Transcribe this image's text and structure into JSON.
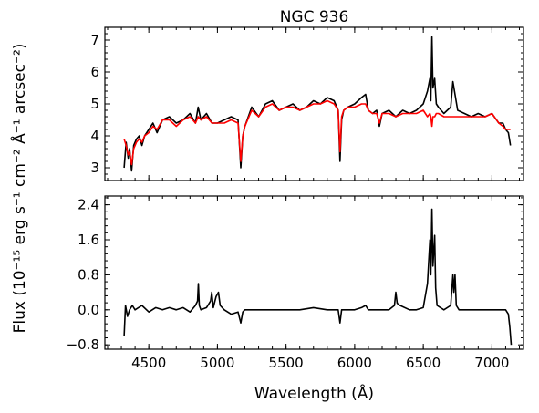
{
  "chart_data": {
    "title": "NGC 936",
    "xlabel": "Wavelength (Å)",
    "ylabel": "Flux (10⁻¹⁵ erg s⁻¹ cm⁻² Å⁻¹ arcsec⁻²)",
    "xlim": [
      4180,
      7230
    ],
    "xticks": [
      "4500",
      "5000",
      "5500",
      "6000",
      "6500",
      "7000"
    ],
    "x_tick_values": [
      4500,
      5000,
      5500,
      6000,
      6500,
      7000
    ],
    "panels": [
      {
        "type": "line",
        "ylim": [
          2.6,
          7.4
        ],
        "yticks": [
          "3",
          "4",
          "5",
          "6",
          "7"
        ],
        "y_tick_values": [
          3,
          4,
          5,
          6,
          7
        ],
        "series": [
          {
            "color": "#000000",
            "role": "observed",
            "x": [
              4320,
              4335,
              4350,
              4360,
              4375,
              4390,
              4410,
              4430,
              4450,
              4470,
              4500,
              4530,
              4560,
              4600,
              4650,
              4700,
              4750,
              4800,
              4840,
              4860,
              4880,
              4920,
              4960,
              5000,
              5050,
              5100,
              5150,
              5170,
              5185,
              5200,
              5250,
              5300,
              5350,
              5400,
              5450,
              5500,
              5550,
              5600,
              5650,
              5700,
              5750,
              5800,
              5850,
              5880,
              5893,
              5905,
              5920,
              5950,
              6000,
              6050,
              6080,
              6100,
              6130,
              6160,
              6180,
              6200,
              6250,
              6300,
              6350,
              6400,
              6450,
              6500,
              6530,
              6548,
              6555,
              6563,
              6570,
              6583,
              6595,
              6610,
              6650,
              6700,
              6716,
              6731,
              6750,
              6800,
              6850,
              6900,
              6950,
              7000,
              7050,
              7080,
              7100,
              7120,
              7135
            ],
            "y": [
              3.0,
              3.8,
              3.3,
              3.6,
              2.9,
              3.7,
              3.9,
              4.0,
              3.7,
              4.0,
              4.2,
              4.4,
              4.1,
              4.5,
              4.6,
              4.4,
              4.5,
              4.7,
              4.4,
              4.9,
              4.5,
              4.7,
              4.4,
              4.4,
              4.5,
              4.6,
              4.5,
              3.0,
              4.0,
              4.3,
              4.9,
              4.6,
              5.0,
              5.1,
              4.8,
              4.9,
              5.0,
              4.8,
              4.9,
              5.1,
              5.0,
              5.2,
              5.1,
              4.8,
              3.2,
              4.5,
              4.8,
              4.9,
              5.0,
              5.2,
              5.3,
              4.8,
              4.7,
              4.8,
              4.3,
              4.7,
              4.8,
              4.6,
              4.8,
              4.7,
              4.8,
              5.0,
              5.4,
              5.8,
              5.1,
              7.1,
              5.5,
              5.8,
              5.0,
              4.9,
              4.7,
              4.9,
              5.7,
              5.3,
              4.8,
              4.7,
              4.6,
              4.7,
              4.6,
              4.7,
              4.4,
              4.4,
              4.2,
              4.1,
              3.7
            ]
          },
          {
            "color": "#ff0000",
            "role": "model",
            "x": [
              4320,
              4335,
              4350,
              4360,
              4375,
              4390,
              4410,
              4430,
              4450,
              4470,
              4500,
              4530,
              4560,
              4600,
              4650,
              4700,
              4750,
              4800,
              4840,
              4860,
              4880,
              4920,
              4960,
              5000,
              5050,
              5100,
              5150,
              5170,
              5185,
              5200,
              5250,
              5300,
              5350,
              5400,
              5450,
              5500,
              5550,
              5600,
              5650,
              5700,
              5750,
              5800,
              5850,
              5880,
              5893,
              5905,
              5920,
              5950,
              6000,
              6050,
              6080,
              6100,
              6130,
              6160,
              6180,
              6200,
              6250,
              6300,
              6350,
              6400,
              6450,
              6500,
              6530,
              6548,
              6555,
              6563,
              6570,
              6583,
              6595,
              6610,
              6650,
              6700,
              6716,
              6731,
              6750,
              6800,
              6850,
              6900,
              6950,
              7000,
              7050,
              7080,
              7100,
              7120,
              7135
            ],
            "y": [
              3.9,
              3.7,
              3.4,
              3.5,
              3.1,
              3.6,
              3.8,
              3.9,
              3.8,
              4.0,
              4.1,
              4.3,
              4.2,
              4.5,
              4.5,
              4.3,
              4.5,
              4.6,
              4.4,
              4.6,
              4.5,
              4.6,
              4.4,
              4.4,
              4.4,
              4.5,
              4.4,
              3.2,
              4.0,
              4.3,
              4.8,
              4.6,
              4.9,
              5.0,
              4.8,
              4.9,
              4.9,
              4.8,
              4.9,
              5.0,
              5.0,
              5.1,
              5.0,
              4.8,
              3.5,
              4.6,
              4.8,
              4.9,
              4.9,
              5.0,
              5.0,
              4.8,
              4.7,
              4.7,
              4.4,
              4.7,
              4.7,
              4.6,
              4.7,
              4.7,
              4.7,
              4.8,
              4.6,
              4.7,
              4.6,
              4.3,
              4.6,
              4.6,
              4.7,
              4.7,
              4.6,
              4.6,
              4.6,
              4.6,
              4.6,
              4.6,
              4.6,
              4.6,
              4.6,
              4.7,
              4.4,
              4.3,
              4.2,
              4.2,
              4.2
            ]
          }
        ]
      },
      {
        "type": "line",
        "ylim": [
          -0.9,
          2.6
        ],
        "yticks": [
          "−0.8",
          "0.0",
          "0.8",
          "1.6",
          "2.4"
        ],
        "y_tick_values": [
          -0.8,
          0.0,
          0.8,
          1.6,
          2.4
        ],
        "series": [
          {
            "color": "#000000",
            "role": "residual",
            "x": [
              4320,
              4330,
              4345,
              4360,
              4380,
              4400,
              4450,
              4500,
              4550,
              4600,
              4650,
              4700,
              4750,
              4800,
              4840,
              4855,
              4861,
              4868,
              4880,
              4920,
              4950,
              4959,
              4970,
              4990,
              5007,
              5020,
              5050,
              5100,
              5150,
              5170,
              5185,
              5200,
              5300,
              5400,
              5500,
              5600,
              5700,
              5800,
              5880,
              5893,
              5905,
              5950,
              6000,
              6050,
              6080,
              6100,
              6150,
              6200,
              6250,
              6290,
              6300,
              6310,
              6330,
              6400,
              6450,
              6500,
              6530,
              6548,
              6555,
              6563,
              6570,
              6583,
              6590,
              6600,
              6650,
              6700,
              6716,
              6722,
              6731,
              6740,
              6760,
              6800,
              6900,
              7000,
              7050,
              7080,
              7100,
              7120,
              7130,
              7140
            ],
            "y": [
              -0.6,
              0.1,
              -0.15,
              0.0,
              0.1,
              0.0,
              0.1,
              -0.05,
              0.05,
              0.0,
              0.05,
              0.0,
              0.05,
              -0.05,
              0.1,
              0.2,
              0.6,
              0.1,
              0.0,
              0.05,
              0.2,
              0.4,
              0.05,
              0.3,
              0.4,
              0.1,
              0.0,
              -0.1,
              -0.05,
              -0.3,
              -0.05,
              0.0,
              0.0,
              0.0,
              0.0,
              0.0,
              0.05,
              0.0,
              0.0,
              -0.3,
              0.0,
              0.0,
              0.0,
              0.05,
              0.1,
              0.0,
              0.0,
              0.0,
              0.0,
              0.1,
              0.4,
              0.15,
              0.1,
              0.0,
              0.0,
              0.05,
              0.6,
              1.6,
              0.8,
              2.3,
              1.0,
              1.7,
              0.5,
              0.1,
              0.0,
              0.1,
              0.8,
              0.4,
              0.8,
              0.1,
              0.0,
              0.0,
              0.0,
              0.0,
              0.0,
              0.0,
              0.0,
              -0.1,
              -0.4,
              -0.8
            ]
          }
        ]
      }
    ]
  }
}
